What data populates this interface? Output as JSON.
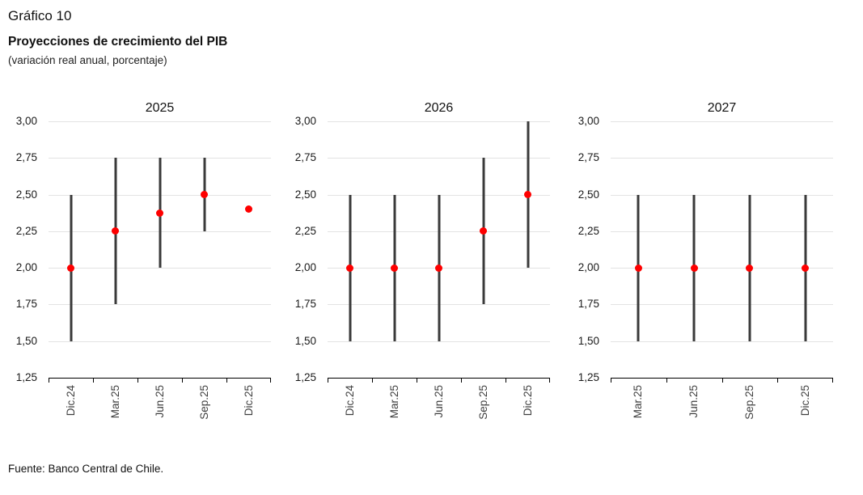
{
  "header": {
    "figure_label": "Gráfico 10",
    "title": "Proyecciones de crecimiento del PIB",
    "subtitle": "(variación real anual, porcentaje)"
  },
  "footer": {
    "source": "Fuente: Banco Central de Chile."
  },
  "colors": {
    "range_bar": "#3a3a3a",
    "point_dot": "#fe0000",
    "gridline": "#e3e3e3",
    "axis": "#000000"
  },
  "chart_data": [
    {
      "type": "scatter",
      "title": "2025",
      "categories": [
        "Dic.24",
        "Mar.25",
        "Jun.25",
        "Sep.25",
        "Dic.25"
      ],
      "range_low": [
        1.5,
        1.75,
        2.0,
        2.25,
        null
      ],
      "range_high": [
        2.5,
        2.75,
        2.75,
        2.75,
        null
      ],
      "points": [
        2.0,
        2.25,
        2.375,
        2.5,
        2.4
      ],
      "ylim": [
        1.25,
        3.0
      ],
      "ytick_step": 0.25,
      "ytick_labels": [
        "3,00",
        "2,75",
        "2,50",
        "2,25",
        "2,00",
        "1,75",
        "1,50",
        "1,25"
      ],
      "grid": true,
      "legend": "none"
    },
    {
      "type": "scatter",
      "title": "2026",
      "categories": [
        "Dic.24",
        "Mar.25",
        "Jun.25",
        "Sep.25",
        "Dic.25"
      ],
      "range_low": [
        1.5,
        1.5,
        1.5,
        1.75,
        2.0
      ],
      "range_high": [
        2.5,
        2.5,
        2.5,
        2.75,
        3.0
      ],
      "points": [
        2.0,
        2.0,
        2.0,
        2.25,
        2.5
      ],
      "ylim": [
        1.25,
        3.0
      ],
      "ytick_step": 0.25,
      "ytick_labels": [
        "3,00",
        "2,75",
        "2,50",
        "2,25",
        "2,00",
        "1,75",
        "1,50",
        "1,25"
      ],
      "grid": true,
      "legend": "none"
    },
    {
      "type": "scatter",
      "title": "2027",
      "categories": [
        "Mar.25",
        "Jun.25",
        "Sep.25",
        "Dic.25"
      ],
      "range_low": [
        1.5,
        1.5,
        1.5,
        1.5
      ],
      "range_high": [
        2.5,
        2.5,
        2.5,
        2.5
      ],
      "points": [
        2.0,
        2.0,
        2.0,
        2.0
      ],
      "ylim": [
        1.25,
        3.0
      ],
      "ytick_step": 0.25,
      "ytick_labels": [
        "3,00",
        "2,75",
        "2,50",
        "2,25",
        "2,00",
        "1,75",
        "1,50",
        "1,25"
      ],
      "grid": true,
      "legend": "none"
    }
  ]
}
